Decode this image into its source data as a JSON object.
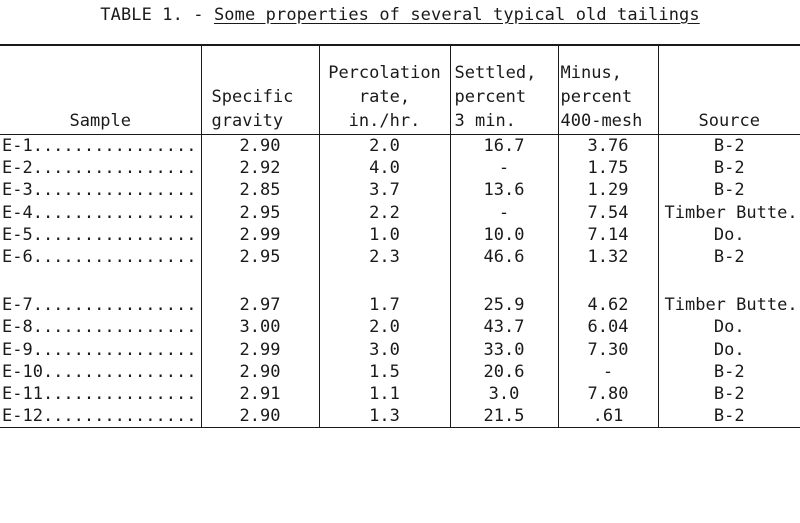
{
  "title": {
    "prefix": "TABLE 1. - ",
    "text": "Some properties of several typical old tailings"
  },
  "headers": [
    "Sample",
    "Specific\ngravity",
    "Percolation\nrate,\nin./hr.",
    "Settled,\npercent\n3 min.",
    "Minus,\npercent\n400-mesh",
    "Source"
  ],
  "rows": [
    [
      "E-1................",
      "2.90",
      "2.0",
      "16.7",
      "3.76",
      "B-2"
    ],
    [
      "E-2................",
      "2.92",
      "4.0",
      "-",
      "1.75",
      "B-2"
    ],
    [
      "E-3................",
      "2.85",
      "3.7",
      "13.6",
      "1.29",
      "B-2"
    ],
    [
      "E-4................",
      "2.95",
      "2.2",
      "-",
      "7.54",
      "Timber Butte."
    ],
    [
      "E-5................",
      "2.99",
      "1.0",
      "10.0",
      "7.14",
      "Do."
    ],
    [
      "E-6................",
      "2.95",
      "2.3",
      "46.6",
      "1.32",
      "B-2"
    ],
    [
      "E-7................",
      "2.97",
      "1.7",
      "25.9",
      "4.62",
      "Timber Butte."
    ],
    [
      "E-8................",
      "3.00",
      "2.0",
      "43.7",
      "6.04",
      "Do."
    ],
    [
      "E-9................",
      "2.99",
      "3.0",
      "33.0",
      "7.30",
      "Do."
    ],
    [
      "E-10...............",
      "2.90",
      "1.5",
      "20.6",
      "-",
      "B-2"
    ],
    [
      "E-11...............",
      "2.91",
      "1.1",
      "3.0",
      "7.80",
      "B-2"
    ],
    [
      "E-12...............",
      "2.90",
      "1.3",
      "21.5",
      ".61",
      "B-2"
    ]
  ]
}
